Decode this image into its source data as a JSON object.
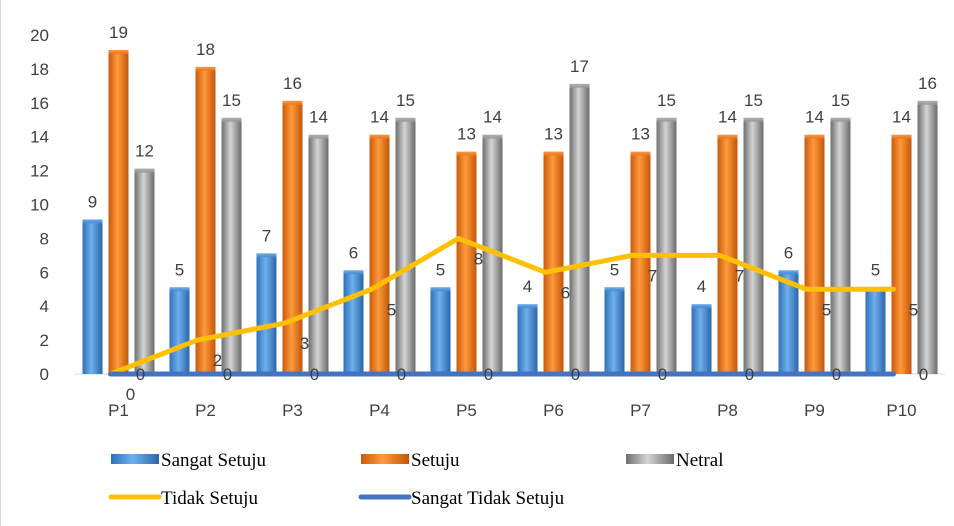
{
  "chart_data": {
    "type": "bar",
    "categories": [
      "P1",
      "P2",
      "P3",
      "P4",
      "P5",
      "P6",
      "P7",
      "P8",
      "P9",
      "P10"
    ],
    "ylim": [
      0,
      20
    ],
    "yticks": [
      0,
      2,
      4,
      6,
      8,
      10,
      12,
      14,
      16,
      18,
      20
    ],
    "series": [
      {
        "name": "Sangat Setuju",
        "kind": "bar",
        "color": "#4a90d9",
        "values": [
          9,
          5,
          7,
          6,
          5,
          4,
          5,
          4,
          6,
          5
        ]
      },
      {
        "name": "Setuju",
        "kind": "bar",
        "color": "#f07c1e",
        "values": [
          19,
          18,
          16,
          14,
          13,
          13,
          13,
          14,
          14,
          14
        ]
      },
      {
        "name": "Netral",
        "kind": "bar",
        "color": "#9a9a9a",
        "values": [
          12,
          15,
          14,
          15,
          14,
          17,
          15,
          15,
          15,
          16
        ]
      },
      {
        "name": "Tidak Setuju",
        "kind": "line",
        "color": "#ffc000",
        "values": [
          0,
          2,
          3,
          5,
          8,
          6,
          7,
          7,
          5,
          5
        ]
      },
      {
        "name": "Sangat Tidak Setuju",
        "kind": "line",
        "color": "#4472c4",
        "values": [
          0,
          0,
          0,
          0,
          0,
          0,
          0,
          0,
          0,
          0
        ]
      }
    ],
    "grid": false,
    "legend": "bottom"
  }
}
